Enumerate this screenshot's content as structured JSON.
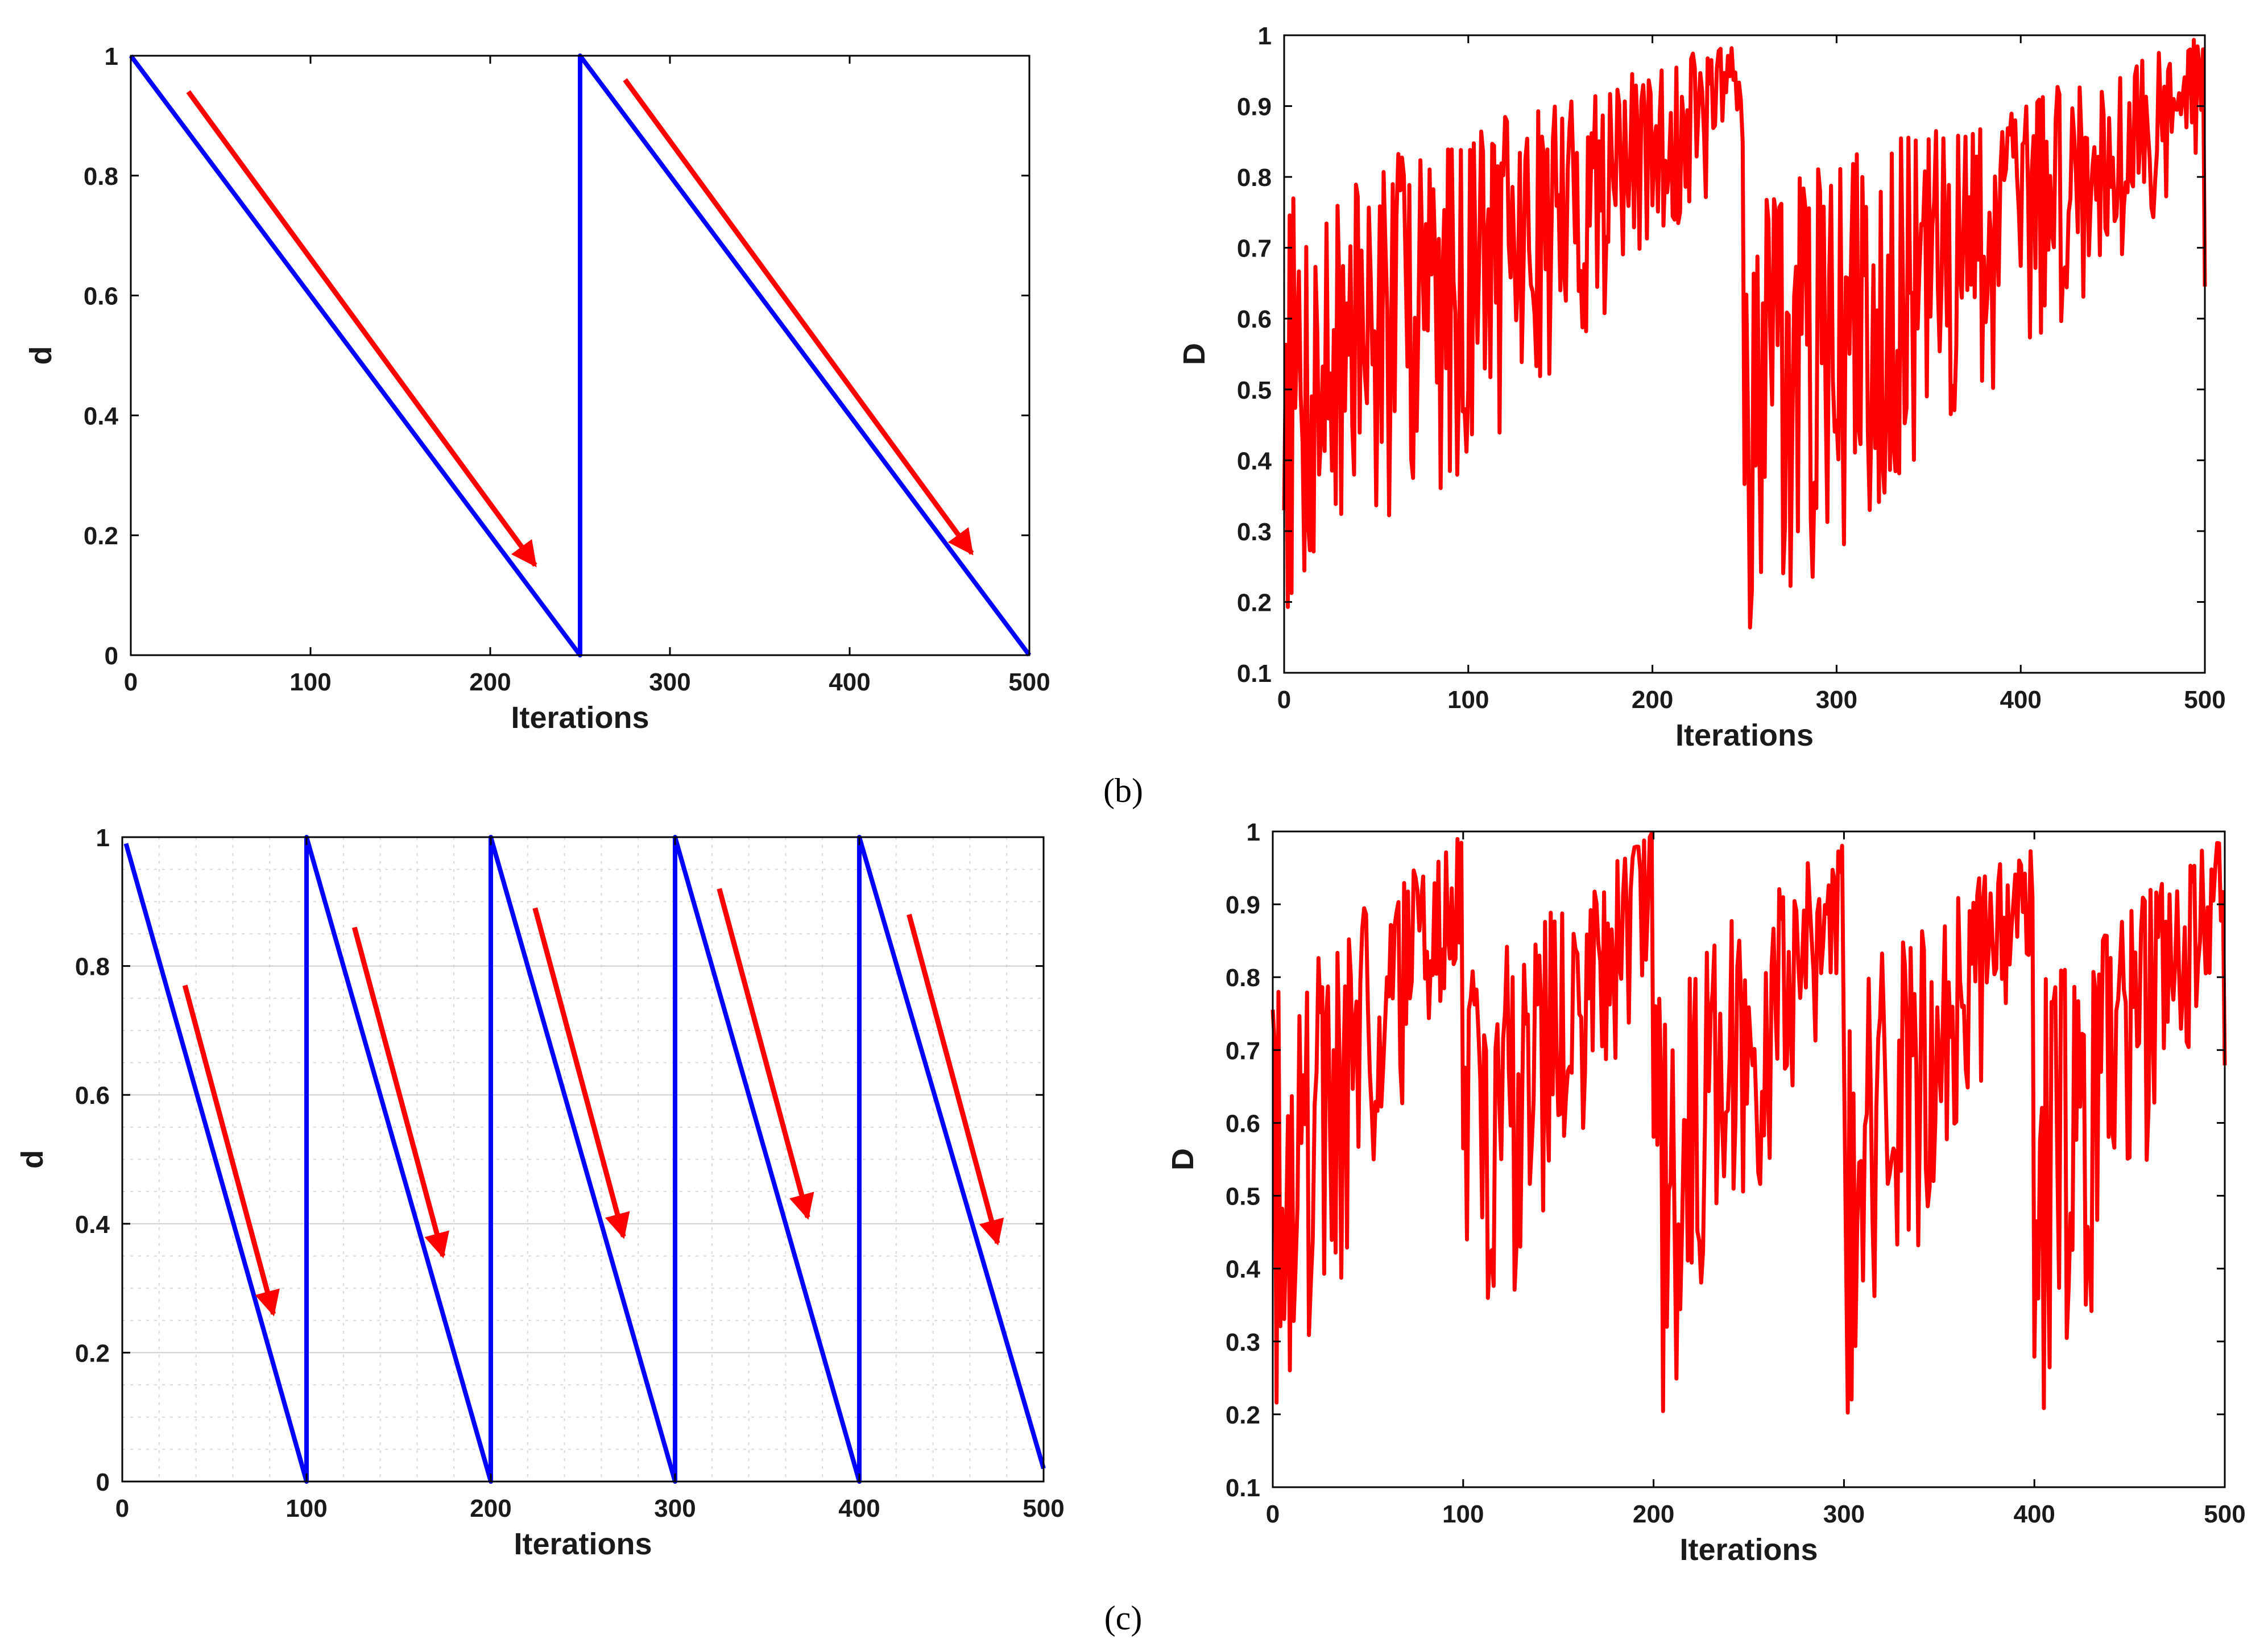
{
  "figure": {
    "caption_b": "(b)",
    "caption_c": "(c)"
  },
  "colors": {
    "d_line": "#0000ff",
    "D_line": "#ff0000",
    "arrow": "#ff0000"
  },
  "chart_data": [
    {
      "id": "b-left",
      "type": "line",
      "xlabel": "Iterations",
      "ylabel": "d",
      "xlim": [
        0,
        500
      ],
      "ylim": [
        0,
        1
      ],
      "xticks": [
        0,
        100,
        200,
        300,
        400,
        500
      ],
      "yticks": [
        0,
        0.2,
        0.4,
        0.6,
        0.8,
        1
      ],
      "ytick_labels": [
        "0",
        "0.2",
        "0.4",
        "0.6",
        "0.8",
        "1"
      ],
      "grid": false,
      "series": [
        {
          "name": "d",
          "color": "#0000ff",
          "x": [
            0,
            250,
            250,
            500
          ],
          "y": [
            1,
            0,
            1,
            0
          ]
        }
      ],
      "annotations": [
        {
          "type": "arrow",
          "from": [
            32,
            0.94
          ],
          "to": [
            225,
            0.15
          ]
        },
        {
          "type": "arrow",
          "from": [
            275,
            0.96
          ],
          "to": [
            468,
            0.17
          ]
        }
      ]
    },
    {
      "id": "b-right",
      "type": "line",
      "xlabel": "Iterations",
      "ylabel": "D",
      "xlim": [
        0,
        500
      ],
      "ylim": [
        0.1,
        1
      ],
      "xticks": [
        0,
        100,
        200,
        300,
        400,
        500
      ],
      "yticks": [
        0.1,
        0.2,
        0.3,
        0.4,
        0.5,
        0.6,
        0.7,
        0.8,
        0.9,
        1
      ],
      "ytick_labels": [
        "0.1",
        "0.2",
        "0.3",
        "0.4",
        "0.5",
        "0.6",
        "0.7",
        "0.8",
        "0.9",
        "1"
      ],
      "grid": false,
      "series": [
        {
          "name": "D",
          "color": "#ff0000",
          "generator": {
            "period": 250,
            "lower_start": 0.14,
            "lower_end": 0.82,
            "upper_start": 0.78,
            "upper_end": 1.0,
            "seed": 7,
            "step": 1
          }
        }
      ]
    },
    {
      "id": "c-left",
      "type": "line",
      "xlabel": "Iterations",
      "ylabel": "d",
      "xlim": [
        0,
        500
      ],
      "ylim": [
        0,
        1
      ],
      "xticks": [
        0,
        100,
        200,
        300,
        400,
        500
      ],
      "yticks": [
        0,
        0.2,
        0.4,
        0.6,
        0.8,
        1
      ],
      "ytick_labels": [
        "0",
        "0.2",
        "0.4",
        "0.6",
        "0.8",
        "1"
      ],
      "grid": true,
      "series": [
        {
          "name": "d",
          "color": "#0000ff",
          "x": [
            2,
            100,
            100,
            200,
            200,
            300,
            300,
            400,
            400,
            500
          ],
          "y": [
            0.99,
            0,
            1,
            0,
            1,
            0,
            1,
            0,
            1,
            0.02
          ]
        }
      ],
      "annotations": [
        {
          "type": "arrow",
          "from": [
            34,
            0.77
          ],
          "to": [
            82,
            0.26
          ]
        },
        {
          "type": "arrow",
          "from": [
            126,
            0.86
          ],
          "to": [
            174,
            0.35
          ]
        },
        {
          "type": "arrow",
          "from": [
            224,
            0.89
          ],
          "to": [
            272,
            0.38
          ]
        },
        {
          "type": "arrow",
          "from": [
            324,
            0.92
          ],
          "to": [
            372,
            0.41
          ]
        },
        {
          "type": "arrow",
          "from": [
            427,
            0.88
          ],
          "to": [
            475,
            0.37
          ]
        }
      ]
    },
    {
      "id": "c-right",
      "type": "line",
      "xlabel": "Iterations",
      "ylabel": "D",
      "xlim": [
        0,
        500
      ],
      "ylim": [
        0.1,
        1
      ],
      "xticks": [
        0,
        100,
        200,
        300,
        400,
        500
      ],
      "yticks": [
        0.1,
        0.2,
        0.3,
        0.4,
        0.5,
        0.6,
        0.7,
        0.8,
        0.9,
        1
      ],
      "ytick_labels": [
        "0.1",
        "0.2",
        "0.3",
        "0.4",
        "0.5",
        "0.6",
        "0.7",
        "0.8",
        "0.9",
        "1"
      ],
      "grid": false,
      "series": [
        {
          "name": "D",
          "color": "#ff0000",
          "generator": {
            "period": 100,
            "lower_start": 0.16,
            "lower_end": 0.82,
            "upper_start": 0.8,
            "upper_end": 1.0,
            "seed": 19,
            "step": 1
          }
        }
      ]
    }
  ]
}
